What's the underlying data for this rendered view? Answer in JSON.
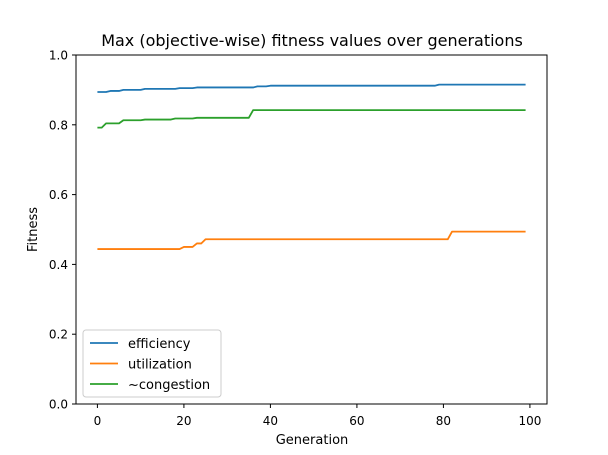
{
  "chart_data": {
    "type": "line",
    "title": "Max (objective-wise) fitness values over generations",
    "xlabel": "Generation",
    "ylabel": "Fitness",
    "xlim": [
      -4.95,
      103.95
    ],
    "ylim": [
      0.0,
      1.0
    ],
    "xticks": [
      0,
      20,
      40,
      60,
      80,
      100
    ],
    "yticks": [
      0.0,
      0.2,
      0.4,
      0.6,
      0.8,
      1.0
    ],
    "xtick_labels": [
      "0",
      "20",
      "40",
      "60",
      "80",
      "100"
    ],
    "ytick_labels": [
      "0.0",
      "0.2",
      "0.4",
      "0.6",
      "0.8",
      "1.0"
    ],
    "grid": false,
    "legend_position": "lower-left",
    "series": [
      {
        "name": "efficiency",
        "color": "#1f77b4",
        "points": [
          [
            0,
            0.894
          ],
          [
            2,
            0.894
          ],
          [
            3,
            0.897
          ],
          [
            5,
            0.897
          ],
          [
            6,
            0.9
          ],
          [
            10,
            0.9
          ],
          [
            11,
            0.903
          ],
          [
            18,
            0.903
          ],
          [
            19,
            0.905
          ],
          [
            22,
            0.905
          ],
          [
            23,
            0.907
          ],
          [
            36,
            0.907
          ],
          [
            37,
            0.91
          ],
          [
            39,
            0.91
          ],
          [
            40,
            0.912
          ],
          [
            78,
            0.912
          ],
          [
            79,
            0.915
          ],
          [
            99,
            0.915
          ]
        ]
      },
      {
        "name": "utilization",
        "color": "#ff7f0e",
        "points": [
          [
            0,
            0.444
          ],
          [
            19,
            0.444
          ],
          [
            20,
            0.45
          ],
          [
            22,
            0.45
          ],
          [
            23,
            0.46
          ],
          [
            24,
            0.46
          ],
          [
            25,
            0.472
          ],
          [
            81,
            0.472
          ],
          [
            82,
            0.494
          ],
          [
            99,
            0.494
          ]
        ]
      },
      {
        "name": "~congestion",
        "color": "#2ca02c",
        "points": [
          [
            0,
            0.792
          ],
          [
            1,
            0.792
          ],
          [
            2,
            0.804
          ],
          [
            5,
            0.804
          ],
          [
            6,
            0.813
          ],
          [
            10,
            0.813
          ],
          [
            11,
            0.815
          ],
          [
            17,
            0.815
          ],
          [
            18,
            0.818
          ],
          [
            22,
            0.818
          ],
          [
            23,
            0.82
          ],
          [
            35,
            0.82
          ],
          [
            36,
            0.842
          ],
          [
            99,
            0.842
          ]
        ]
      }
    ]
  }
}
